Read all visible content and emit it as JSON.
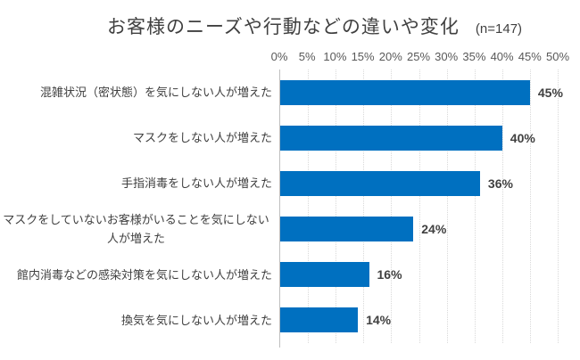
{
  "chart_data": {
    "type": "bar",
    "orientation": "horizontal",
    "title": "お客様のニーズや行動などの違いや変化",
    "n_label": "(n=147)",
    "categories": [
      "混雑状況（密状態）を気にしない人が増えた",
      "マスクをしない人が増えた",
      "手指消毒をしない人が増えた",
      "マスクをしていないお客様がいることを気にしない人が増えた",
      "館内消毒などの感染対策を気にしない人が増えた",
      "換気を気にしない人が増えた"
    ],
    "values": [
      45,
      40,
      36,
      24,
      16,
      14
    ],
    "value_labels": [
      "45%",
      "40%",
      "36%",
      "24%",
      "16%",
      "14%"
    ],
    "xlim": [
      0,
      50
    ],
    "x_ticks": [
      "0%",
      "5%",
      "10%",
      "15%",
      "20%",
      "25%",
      "30%",
      "35%",
      "40%",
      "45%",
      "50%"
    ],
    "grid": "vertical-dotted",
    "legend": "none",
    "colors": {
      "bar": "#0070C0",
      "text": "#404040",
      "tick": "#595959",
      "grid": "#d9d9d9",
      "axis": "#bfbfbf",
      "background": "#ffffff"
    }
  }
}
